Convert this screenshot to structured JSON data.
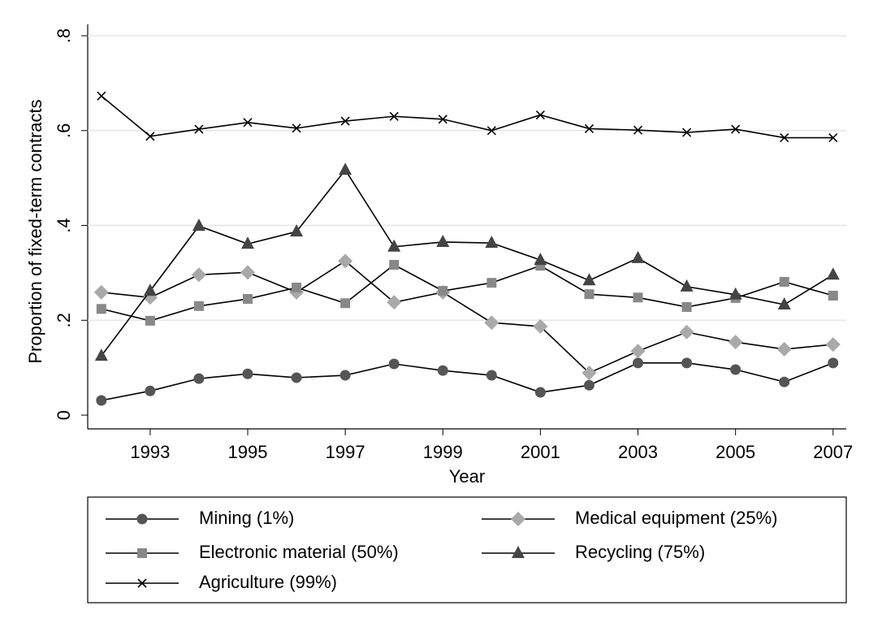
{
  "chart_data": {
    "type": "line",
    "y_label": "Proportion of fixed-term contracts",
    "x_label": "Year",
    "x": [
      1992,
      1993,
      1994,
      1995,
      1996,
      1997,
      1998,
      1999,
      2000,
      2001,
      2002,
      2003,
      2004,
      2005,
      2006,
      2007
    ],
    "series": [
      {
        "name": "Mining (1%)",
        "color": "#555555",
        "marker": "circle",
        "values": [
          0.031,
          0.051,
          0.077,
          0.087,
          0.079,
          0.084,
          0.108,
          0.094,
          0.084,
          0.048,
          0.063,
          0.11,
          0.11,
          0.096,
          0.07,
          0.11
        ]
      },
      {
        "name": "Medical equipment (25%)",
        "color": "#a9a9a9",
        "marker": "diamond",
        "values": [
          0.259,
          0.248,
          0.296,
          0.301,
          0.259,
          0.325,
          0.238,
          0.259,
          0.195,
          0.187,
          0.089,
          0.135,
          0.175,
          0.154,
          0.139,
          0.149
        ]
      },
      {
        "name": "Electronic material (50%)",
        "color": "#888888",
        "marker": "square",
        "values": [
          0.224,
          0.199,
          0.23,
          0.245,
          0.269,
          0.236,
          0.317,
          0.262,
          0.279,
          0.315,
          0.255,
          0.248,
          0.228,
          0.247,
          0.281,
          0.252
        ]
      },
      {
        "name": "Recycling (75%)",
        "color": "#444444",
        "marker": "triangle",
        "values": [
          0.125,
          0.262,
          0.399,
          0.361,
          0.387,
          0.517,
          0.355,
          0.365,
          0.363,
          0.327,
          0.284,
          0.331,
          0.271,
          0.254,
          0.233,
          0.296
        ]
      },
      {
        "name": "Agriculture (99%)",
        "color": "#000000",
        "marker": "x",
        "values": [
          0.673,
          0.588,
          0.603,
          0.617,
          0.605,
          0.62,
          0.63,
          0.624,
          0.6,
          0.633,
          0.604,
          0.601,
          0.596,
          0.603,
          0.585,
          0.585
        ]
      }
    ],
    "xlim": [
      1991.72,
      2007.27
    ],
    "xticks": [
      1993,
      1995,
      1997,
      1999,
      2001,
      2003,
      2005,
      2007
    ],
    "ylim": [
      -0.029,
      0.824
    ],
    "yticks": [
      0,
      {
        "value": 0.2,
        "label": ".2"
      },
      {
        "value": 0.4,
        "label": ".4"
      },
      {
        "value": 0.6,
        "label": ".6"
      },
      {
        "value": 0.8,
        "label": ".8"
      }
    ],
    "grid": true,
    "line_color": "#000000"
  }
}
